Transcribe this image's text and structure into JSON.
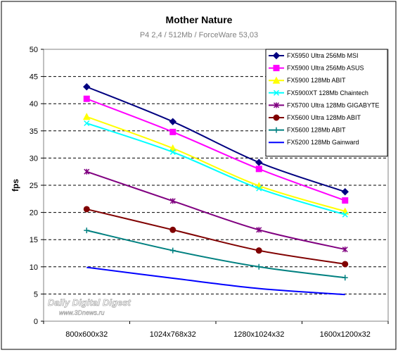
{
  "chart_data": {
    "type": "line",
    "title": "Mother Nature",
    "subtitle": "P4 2,4 / 512Mb / ForceWare 53,03",
    "xlabel": "",
    "ylabel": "fps",
    "ylim": [
      0,
      50
    ],
    "ytick_step": 5,
    "grid": "horizontal dashed",
    "legend_position": "top-right",
    "categories": [
      "800x600x32",
      "1024x768x32",
      "1280x1024x32",
      "1600x1200x32"
    ],
    "series": [
      {
        "name": "FX5950 Ultra 256Mb MSI",
        "values": [
          43.1,
          36.7,
          29.2,
          23.8
        ],
        "color": "#000080",
        "marker": "diamond"
      },
      {
        "name": "FX5900 Ultra 256Mb ASUS",
        "values": [
          40.9,
          34.8,
          28.0,
          22.2
        ],
        "color": "#ff00ff",
        "marker": "square"
      },
      {
        "name": "FX5900 128Mb ABIT",
        "values": [
          37.6,
          31.8,
          24.9,
          20.2
        ],
        "color": "#ffff00",
        "marker": "triangle"
      },
      {
        "name": "FX5900XT 128Mb Chaintech",
        "values": [
          36.4,
          31.1,
          24.4,
          19.6
        ],
        "color": "#00ffff",
        "marker": "x"
      },
      {
        "name": "FX5700 Ultra 128Mb GIGABYTE",
        "values": [
          27.5,
          22.1,
          16.8,
          13.2
        ],
        "color": "#800080",
        "marker": "star"
      },
      {
        "name": "FX5600 Ultra 128Mb ABIT",
        "values": [
          20.6,
          16.8,
          13.0,
          10.5
        ],
        "color": "#800000",
        "marker": "circle"
      },
      {
        "name": "FX5600 128Mb ABIT",
        "values": [
          16.7,
          13.0,
          10.0,
          8.0
        ],
        "color": "#008080",
        "marker": "plus"
      },
      {
        "name": "FX5200 128Mb Gainward",
        "values": [
          9.9,
          7.9,
          6.0,
          4.9
        ],
        "color": "#0000ff",
        "marker": "none"
      }
    ]
  },
  "watermark": {
    "line1": "Daily Digital Digest",
    "line2": "www.3Dnews.ru"
  }
}
